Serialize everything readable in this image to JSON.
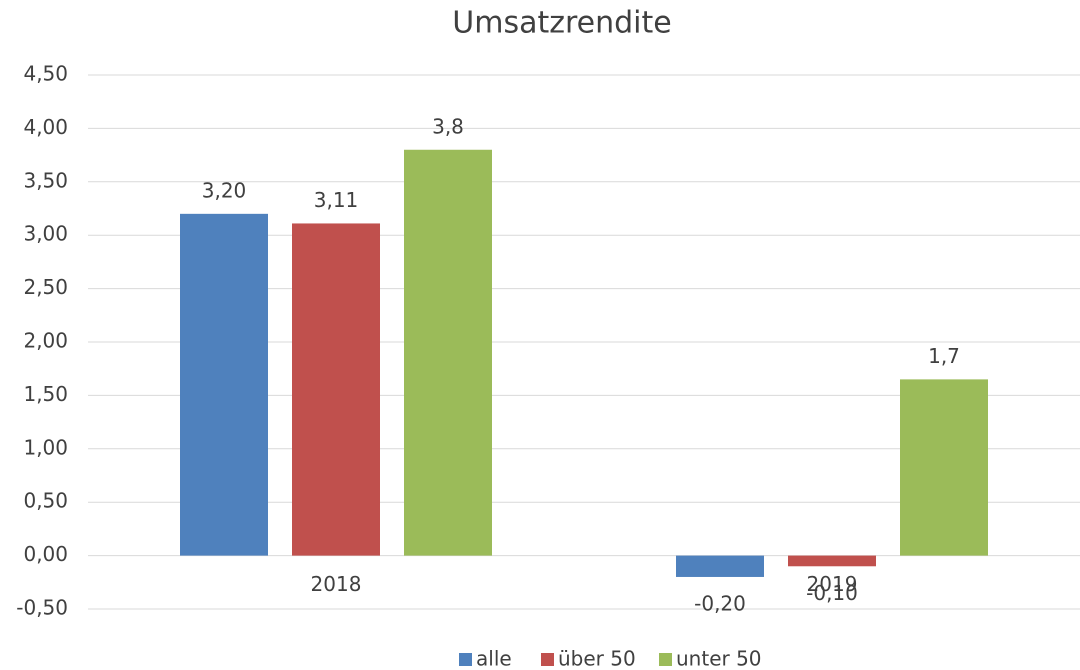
{
  "chart_data": {
    "type": "bar",
    "title": "Umsatzrendite",
    "categories": [
      "2018",
      "2019"
    ],
    "series": [
      {
        "name": "alle",
        "color": "#4f81bd",
        "values": [
          3.2,
          -0.2
        ],
        "value_labels": [
          "3,20",
          "-0,20"
        ]
      },
      {
        "name": "über 50",
        "color": "#c0504d",
        "values": [
          3.11,
          -0.1
        ],
        "value_labels": [
          "3,11",
          "-0,10"
        ]
      },
      {
        "name": "unter 50",
        "color": "#9bbb59",
        "values": [
          3.8,
          1.65
        ],
        "value_labels": [
          "3,8",
          "1,7"
        ]
      }
    ],
    "ylim": [
      -0.5,
      4.5
    ],
    "yticks": [
      {
        "value": -0.5,
        "label": "-0,50"
      },
      {
        "value": 0,
        "label": "0,00"
      },
      {
        "value": 0.5,
        "label": "0,50"
      },
      {
        "value": 1,
        "label": "1,00"
      },
      {
        "value": 1.5,
        "label": "1,50"
      },
      {
        "value": 2,
        "label": "2,00"
      },
      {
        "value": 2.5,
        "label": "2,50"
      },
      {
        "value": 3,
        "label": "3,00"
      },
      {
        "value": 3.5,
        "label": "3,50"
      },
      {
        "value": 4,
        "label": "4,00"
      },
      {
        "value": 4.5,
        "label": "4,50"
      }
    ],
    "grid": true,
    "legend": "bottom"
  }
}
